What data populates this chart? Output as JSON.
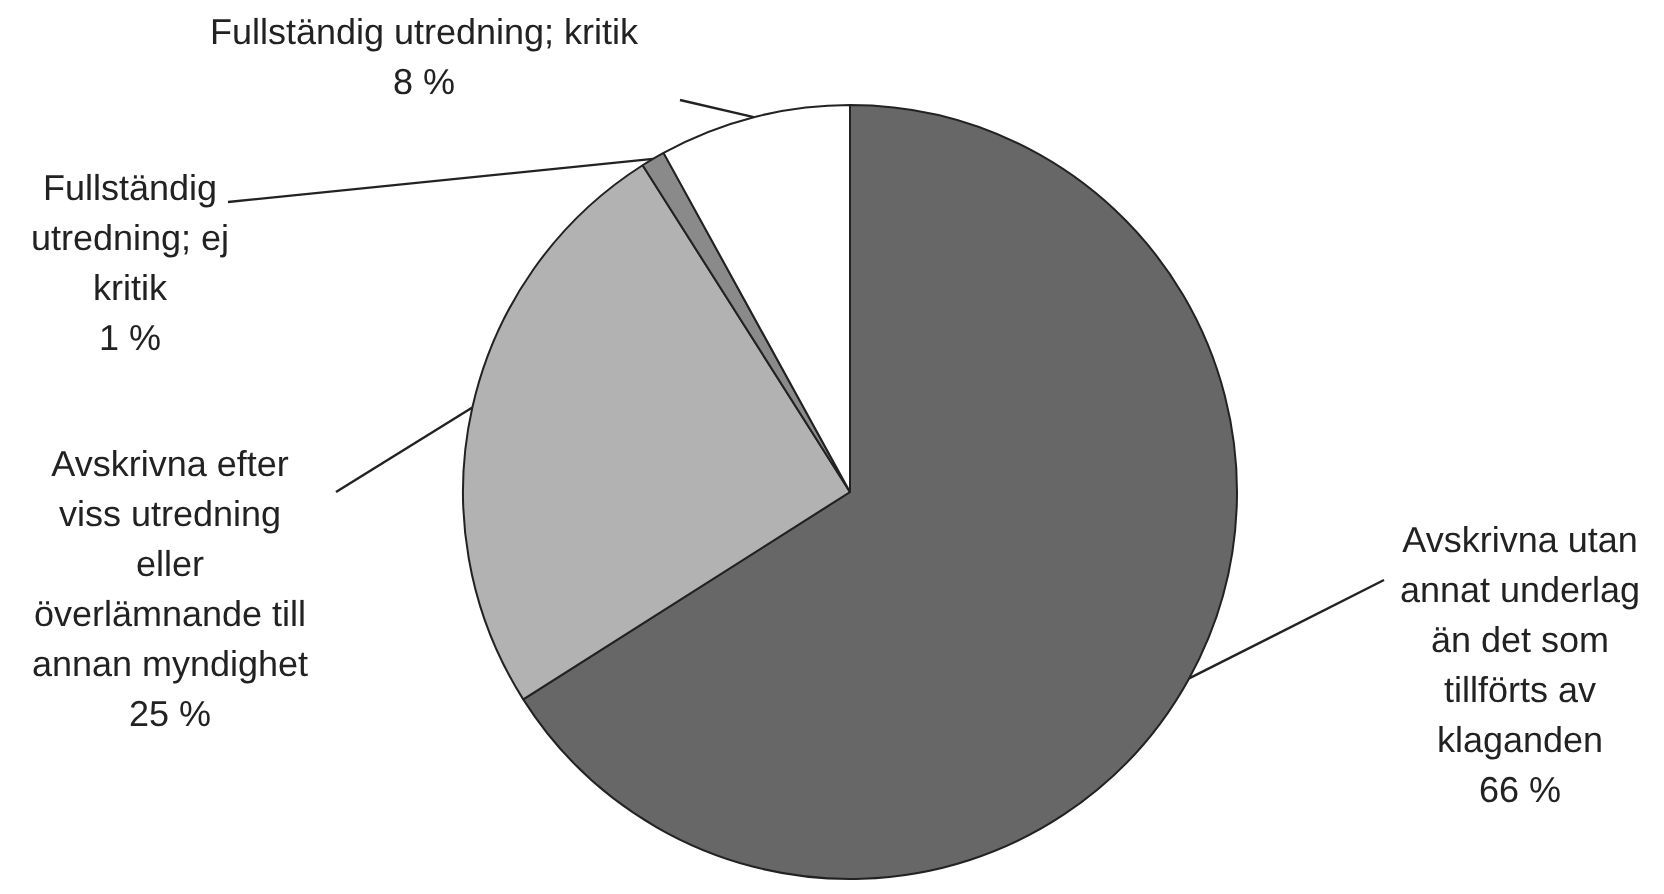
{
  "chart_data": {
    "type": "pie",
    "categories": [
      "Avskrivna utan annat underlag än det som tillförts av klaganden",
      "Avskrivna efter viss utredning eller överlämnande till annan myndighet",
      "Fullständig utredning; ej kritik",
      "Fullständig utredning; kritik"
    ],
    "values": [
      66,
      25,
      1,
      8
    ],
    "value_labels": [
      "66 %",
      "25 %",
      "1 %",
      "8 %"
    ],
    "colors": [
      "#676767",
      "#b2b2b2",
      "#8a8a8a",
      "#ffffff"
    ],
    "legend": false
  }
}
